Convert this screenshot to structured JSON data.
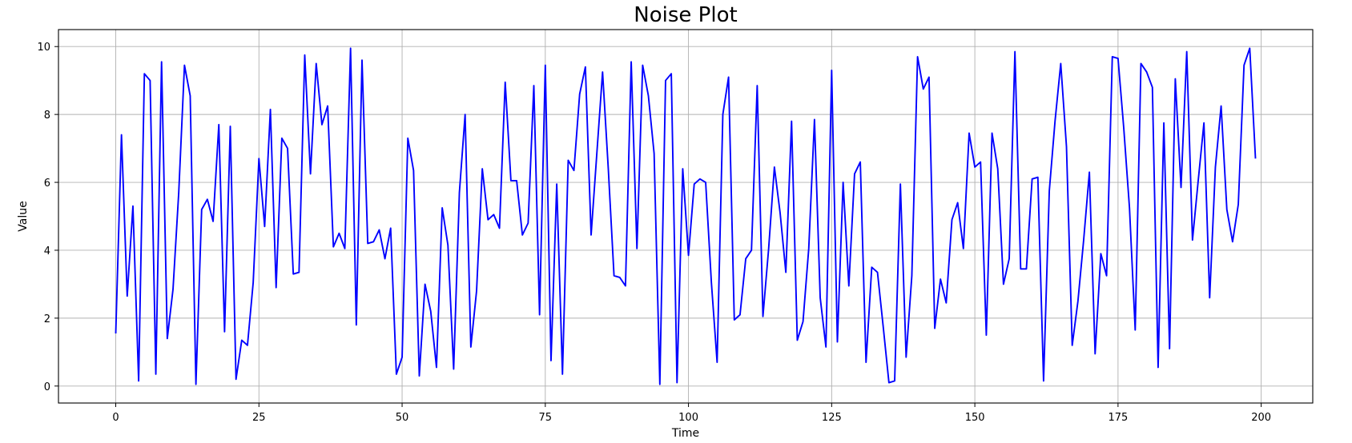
{
  "chart_data": {
    "type": "line",
    "title": "Noise Plot",
    "xlabel": "Time",
    "ylabel": "Value",
    "xlim": [
      -10,
      209
    ],
    "ylim": [
      -0.5,
      10.5
    ],
    "xticks": [
      0,
      25,
      50,
      75,
      100,
      125,
      150,
      175,
      200
    ],
    "yticks": [
      0,
      2,
      4,
      6,
      8,
      10
    ],
    "grid": true,
    "line_color": "#0000ff",
    "series": [
      {
        "x": [
          0,
          1,
          2,
          3,
          4,
          5,
          6,
          7,
          8,
          9,
          10,
          11,
          12,
          13,
          14,
          15,
          16,
          17,
          18,
          19,
          20,
          21,
          22,
          23,
          24,
          25,
          26,
          27,
          28,
          29,
          30,
          31,
          32,
          33,
          34,
          35,
          36,
          37,
          38,
          39,
          40,
          41,
          42,
          43,
          44,
          45,
          46,
          47,
          48,
          49,
          50,
          51,
          52,
          53,
          54,
          55,
          56,
          57,
          58,
          59,
          60,
          61,
          62,
          63,
          64,
          65,
          66,
          67,
          68,
          69,
          70,
          71,
          72,
          73,
          74,
          75,
          76,
          77,
          78,
          79,
          80,
          81,
          82,
          83,
          84,
          85,
          86,
          87,
          88,
          89,
          90,
          91,
          92,
          93,
          94,
          95,
          96,
          97,
          98,
          99,
          100,
          101,
          102,
          103,
          104,
          105,
          106,
          107,
          108,
          109,
          110,
          111,
          112,
          113,
          114,
          115,
          116,
          117,
          118,
          119,
          120,
          121,
          122,
          123,
          124,
          125,
          126,
          127,
          128,
          129,
          130,
          131,
          132,
          133,
          134,
          135,
          136,
          137,
          138,
          139,
          140,
          141,
          142,
          143,
          144,
          145,
          146,
          147,
          148,
          149,
          150,
          151,
          152,
          153,
          154,
          155,
          156,
          157,
          158,
          159,
          160,
          161,
          162,
          163,
          164,
          165,
          166,
          167,
          168,
          169,
          170,
          171,
          172,
          173,
          174,
          175,
          176,
          177,
          178,
          179,
          180,
          181,
          182,
          183,
          184,
          185,
          186,
          187,
          188,
          189,
          190,
          191,
          192,
          193,
          194,
          195,
          196,
          197,
          198,
          199
        ],
        "y": [
          1.55,
          7.4,
          2.65,
          5.3,
          0.15,
          9.2,
          9.0,
          0.35,
          9.55,
          1.4,
          2.85,
          5.7,
          9.45,
          8.55,
          0.05,
          5.2,
          5.5,
          4.85,
          7.7,
          1.6,
          7.65,
          0.2,
          1.35,
          1.2,
          3.05,
          6.7,
          4.7,
          8.15,
          2.9,
          7.3,
          7.0,
          3.3,
          3.35,
          9.75,
          6.25,
          9.5,
          7.7,
          8.25,
          4.1,
          4.5,
          4.05,
          9.95,
          1.8,
          9.6,
          4.2,
          4.25,
          4.6,
          3.75,
          4.65,
          0.35,
          0.85,
          7.3,
          6.35,
          0.3,
          3.0,
          2.2,
          0.55,
          5.25,
          4.15,
          0.5,
          5.7,
          8.0,
          1.15,
          2.8,
          6.4,
          4.9,
          5.05,
          4.65,
          8.95,
          6.05,
          6.05,
          4.45,
          4.8,
          8.85,
          2.1,
          9.45,
          0.75,
          5.95,
          0.35,
          6.65,
          6.35,
          8.6,
          9.4,
          4.45,
          6.85,
          9.25,
          6.4,
          3.25,
          3.2,
          2.95,
          9.55,
          4.05,
          9.45,
          8.55,
          6.85,
          0.05,
          9.0,
          9.2,
          0.1,
          6.4,
          3.85,
          5.95,
          6.1,
          6.0,
          3.05,
          0.7,
          8.0,
          9.1,
          1.95,
          2.1,
          3.75,
          4.0,
          8.85,
          2.05,
          4.05,
          6.45,
          5.1,
          3.35,
          7.8,
          1.35,
          1.9,
          4.05,
          7.85,
          2.6,
          1.15,
          9.3,
          1.3,
          6.0,
          2.95,
          6.25,
          6.6,
          0.7,
          3.5,
          3.35,
          1.75,
          0.1,
          0.15,
          5.95,
          0.85,
          3.25,
          9.7,
          8.75,
          9.1,
          1.7,
          3.15,
          2.45,
          4.9,
          5.4,
          4.05,
          7.45,
          6.45,
          6.6,
          1.5,
          7.45,
          6.4,
          3.0,
          3.75,
          9.85,
          3.45,
          3.45,
          6.1,
          6.15,
          0.15,
          5.75,
          7.8,
          9.5,
          7.05,
          1.2,
          2.5,
          4.3,
          6.3,
          0.95,
          3.9,
          3.25,
          9.7,
          9.65,
          7.6,
          5.25,
          1.65,
          9.5,
          9.25,
          8.8,
          0.55,
          7.75,
          1.1,
          9.05,
          5.85,
          9.85,
          4.3,
          6.05,
          7.75,
          2.6,
          6.45,
          8.25,
          5.2,
          4.25,
          5.35,
          9.45,
          9.95,
          6.7
        ]
      }
    ]
  }
}
